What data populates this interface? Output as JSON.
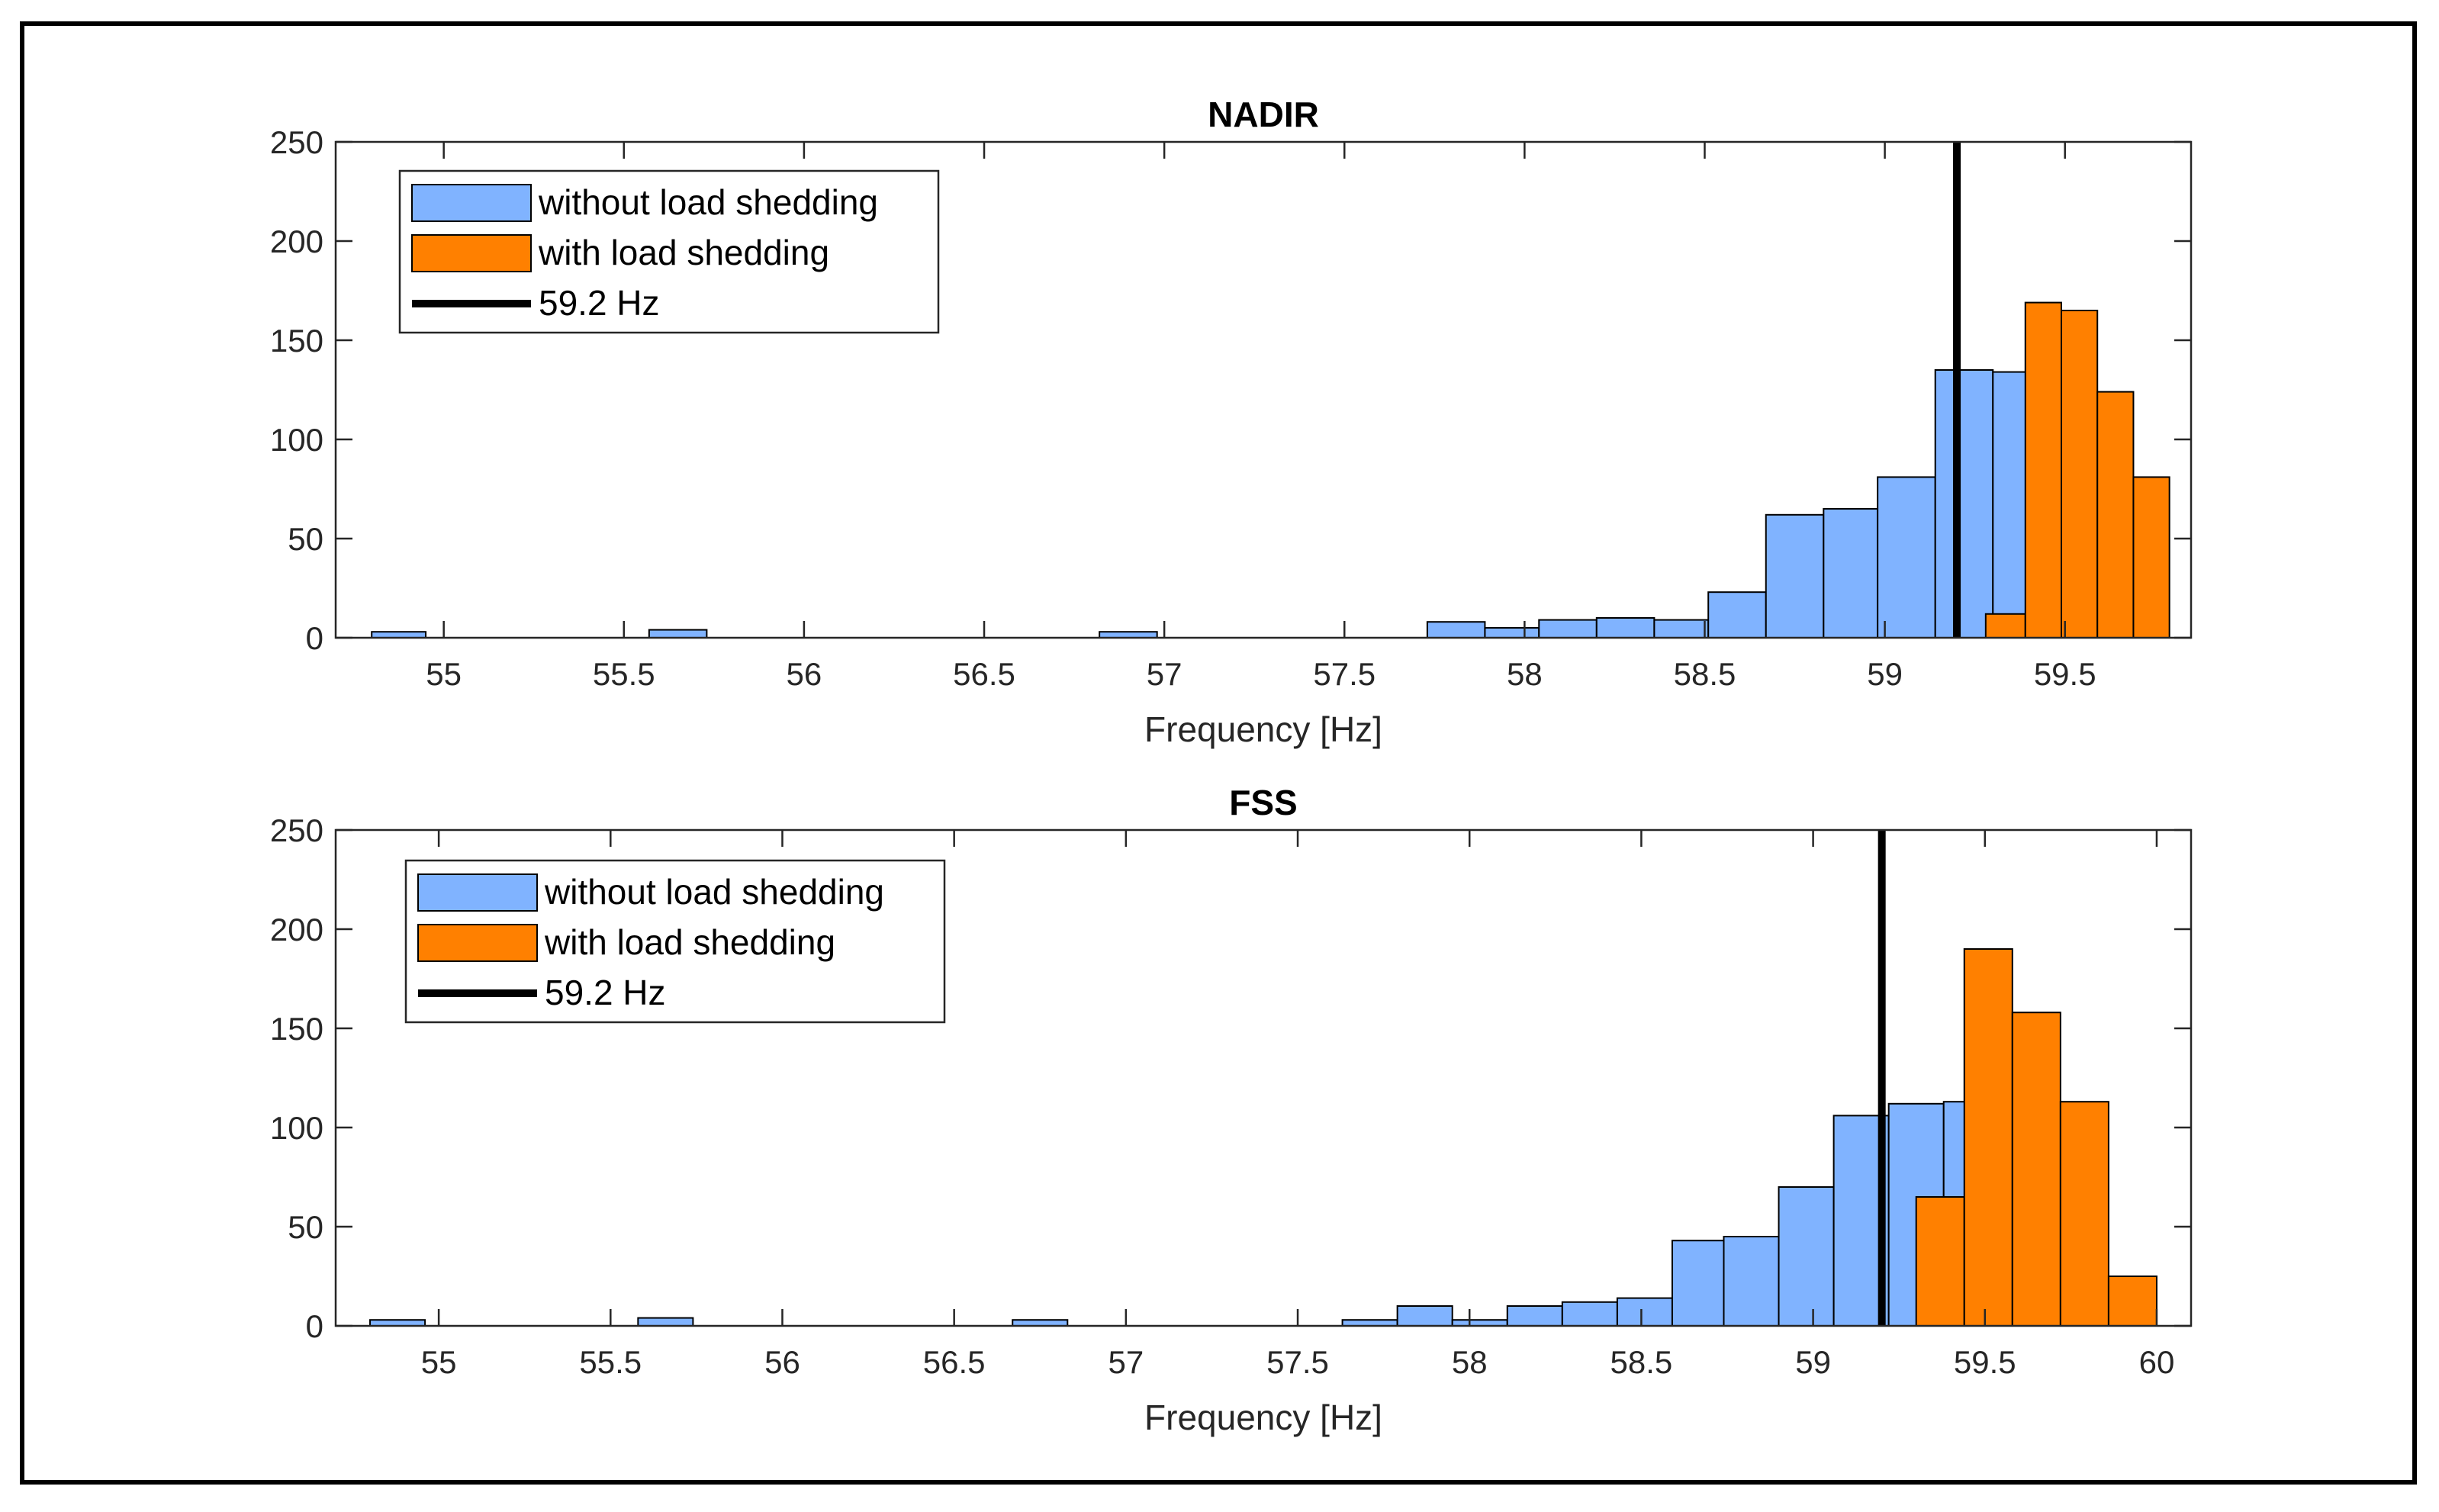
{
  "chart_data": [
    {
      "type": "bar",
      "title": "NADIR",
      "xlabel": "Frequency [Hz]",
      "ylabel": "",
      "xlim": [
        54.7,
        59.85
      ],
      "ylim": [
        0,
        250
      ],
      "xticks": [
        55,
        55.5,
        56,
        56.5,
        57,
        57.5,
        58,
        58.5,
        59,
        59.5
      ],
      "xtick_labels": [
        "55",
        "55.5",
        "56",
        "56.5",
        "57",
        "57.5",
        "58",
        "58.5",
        "59",
        "59.5"
      ],
      "yticks": [
        0,
        50,
        100,
        150,
        200,
        250
      ],
      "ytick_labels": [
        "0",
        "50",
        "100",
        "150",
        "200",
        "250"
      ],
      "legend_position": "top-left",
      "legend": [
        "without load shedding",
        "with load shedding",
        "59.2 Hz"
      ],
      "vline": 59.2,
      "series": [
        {
          "name": "without load shedding",
          "color": "#80b3ff",
          "bins": [
            [
              54.8,
              54.95,
              3
            ],
            [
              55.57,
              55.73,
              4
            ],
            [
              56.82,
              56.98,
              3
            ],
            [
              57.73,
              57.89,
              8
            ],
            [
              57.89,
              58.04,
              5
            ],
            [
              58.04,
              58.2,
              9
            ],
            [
              58.2,
              58.36,
              10
            ],
            [
              58.36,
              58.51,
              9
            ],
            [
              58.51,
              58.67,
              23
            ],
            [
              58.67,
              58.83,
              62
            ],
            [
              58.83,
              58.98,
              65
            ],
            [
              58.98,
              59.14,
              81
            ],
            [
              59.14,
              59.3,
              135
            ],
            [
              59.3,
              59.45,
              134
            ]
          ]
        },
        {
          "name": "with load shedding",
          "color": "#ff8000",
          "bins": [
            [
              59.28,
              59.39,
              12
            ],
            [
              59.39,
              59.49,
              169
            ],
            [
              59.49,
              59.59,
              165
            ],
            [
              59.59,
              59.69,
              124
            ],
            [
              59.69,
              59.79,
              81
            ]
          ]
        }
      ]
    },
    {
      "type": "bar",
      "title": "FSS",
      "xlabel": "Frequency [Hz]",
      "ylabel": "",
      "xlim": [
        54.7,
        60.1
      ],
      "ylim": [
        0,
        250
      ],
      "xticks": [
        55,
        55.5,
        56,
        56.5,
        57,
        57.5,
        58,
        58.5,
        59,
        59.5,
        60
      ],
      "xtick_labels": [
        "55",
        "55.5",
        "56",
        "56.5",
        "57",
        "57.5",
        "58",
        "58.5",
        "59",
        "59.5",
        "60"
      ],
      "yticks": [
        0,
        50,
        100,
        150,
        200,
        250
      ],
      "ytick_labels": [
        "0",
        "50",
        "100",
        "150",
        "200",
        "250"
      ],
      "legend_position": "top-left",
      "legend": [
        "without load shedding",
        "with load shedding",
        "59.2 Hz"
      ],
      "vline": 59.2,
      "series": [
        {
          "name": "without load shedding",
          "color": "#80b3ff",
          "bins": [
            [
              54.8,
              54.96,
              3
            ],
            [
              55.58,
              55.74,
              4
            ],
            [
              56.67,
              56.83,
              3
            ],
            [
              57.63,
              57.79,
              3
            ],
            [
              57.79,
              57.95,
              10
            ],
            [
              57.95,
              58.11,
              3
            ],
            [
              58.11,
              58.27,
              10
            ],
            [
              58.27,
              58.43,
              12
            ],
            [
              58.43,
              58.59,
              14
            ],
            [
              58.59,
              58.74,
              43
            ],
            [
              58.74,
              58.9,
              45
            ],
            [
              58.9,
              59.06,
              70
            ],
            [
              59.06,
              59.22,
              106
            ],
            [
              59.22,
              59.38,
              112
            ],
            [
              59.38,
              59.54,
              113
            ]
          ]
        },
        {
          "name": "with load shedding",
          "color": "#ff8000",
          "bins": [
            [
              59.3,
              59.44,
              65
            ],
            [
              59.44,
              59.58,
              190
            ],
            [
              59.58,
              59.72,
              158
            ],
            [
              59.72,
              59.86,
              113
            ],
            [
              59.86,
              60.0,
              25
            ]
          ]
        }
      ]
    }
  ]
}
